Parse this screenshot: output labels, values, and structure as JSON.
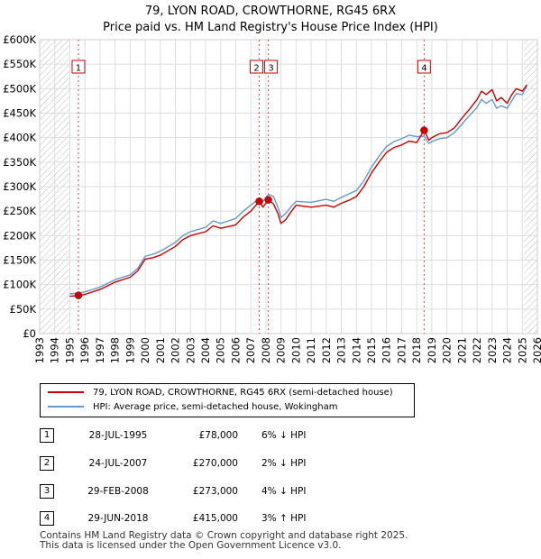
{
  "header": {
    "title_line1": "79, LYON ROAD, CROWTHORNE, RG45 6RX",
    "title_line2": "Price paid vs. HM Land Registry's House Price Index (HPI)"
  },
  "legend": {
    "series1_label": "79, LYON ROAD, CROWTHORNE, RG45 6RX (semi-detached house)",
    "series2_label": "HPI: Average price, semi-detached house, Wokingham"
  },
  "colors": {
    "property_line": "#cc0000",
    "hpi_line": "#6699cc",
    "sale_vline": "#dd4444",
    "hatch": "#bbbbbb",
    "grid": "#dddddd"
  },
  "sales": [
    {
      "num": "1",
      "date": "28-JUL-1995",
      "price": "£78,000",
      "hpi": "6% ↓ HPI"
    },
    {
      "num": "2",
      "date": "24-JUL-2007",
      "price": "£270,000",
      "hpi": "2% ↓ HPI"
    },
    {
      "num": "3",
      "date": "29-FEB-2008",
      "price": "£273,000",
      "hpi": "4% ↓ HPI"
    },
    {
      "num": "4",
      "date": "29-JUN-2018",
      "price": "£415,000",
      "hpi": "3% ↑ HPI"
    }
  ],
  "footer": {
    "line1": "Contains HM Land Registry data © Crown copyright and database right 2025.",
    "line2": "This data is licensed under the Open Government Licence v3.0."
  },
  "chart_data": {
    "type": "line",
    "title": "79, LYON ROAD, CROWTHORNE, RG45 6RX — Price paid vs. HM Land Registry's House Price Index (HPI)",
    "xlabel": "",
    "ylabel": "",
    "xlim": [
      1993,
      2026
    ],
    "ylim": [
      0,
      600000
    ],
    "grid": true,
    "legend_position": "below",
    "x_ticks": [
      "1993",
      "1994",
      "1995",
      "1996",
      "1997",
      "1998",
      "1999",
      "2000",
      "2001",
      "2002",
      "2003",
      "2004",
      "2005",
      "2006",
      "2007",
      "2008",
      "2009",
      "2010",
      "2011",
      "2012",
      "2013",
      "2014",
      "2015",
      "2016",
      "2017",
      "2018",
      "2019",
      "2020",
      "2021",
      "2022",
      "2023",
      "2024",
      "2025",
      "2026"
    ],
    "y_ticks": [
      {
        "value": 0,
        "label": "£0"
      },
      {
        "value": 50000,
        "label": "£50K"
      },
      {
        "value": 100000,
        "label": "£100K"
      },
      {
        "value": 150000,
        "label": "£150K"
      },
      {
        "value": 200000,
        "label": "£200K"
      },
      {
        "value": 250000,
        "label": "£250K"
      },
      {
        "value": 300000,
        "label": "£300K"
      },
      {
        "value": 350000,
        "label": "£350K"
      },
      {
        "value": 400000,
        "label": "£400K"
      },
      {
        "value": 450000,
        "label": "£450K"
      },
      {
        "value": 500000,
        "label": "£500K"
      },
      {
        "value": 550000,
        "label": "£550K"
      },
      {
        "value": 600000,
        "label": "£600K"
      }
    ],
    "hatched_ranges": [
      [
        1993,
        1995.0
      ],
      [
        2025.1,
        2026
      ]
    ],
    "series": [
      {
        "name": "79, LYON ROAD, CROWTHORNE, RG45 6RX (semi-detached house)",
        "color": "#cc0000",
        "x": [
          1995.0,
          1995.57,
          1996.0,
          1997.0,
          1998.0,
          1999.0,
          1999.5,
          2000.0,
          2000.5,
          2001.0,
          2002.0,
          2002.5,
          2003.0,
          2004.0,
          2004.5,
          2005.0,
          2006.0,
          2006.5,
          2007.0,
          2007.56,
          2007.8,
          2008.16,
          2008.5,
          2008.8,
          2009.0,
          2009.3,
          2009.7,
          2010.0,
          2011.0,
          2012.0,
          2012.5,
          2013.0,
          2013.5,
          2014.0,
          2014.5,
          2015.0,
          2015.5,
          2016.0,
          2016.5,
          2017.0,
          2017.5,
          2018.0,
          2018.49,
          2018.8,
          2019.0,
          2019.5,
          2020.0,
          2020.5,
          2021.0,
          2021.5,
          2022.0,
          2022.3,
          2022.6,
          2023.0,
          2023.3,
          2023.6,
          2024.0,
          2024.3,
          2024.6,
          2025.0,
          2025.3
        ],
        "y": [
          76000,
          78000,
          80000,
          90000,
          105000,
          115000,
          128000,
          152000,
          155000,
          160000,
          178000,
          192000,
          200000,
          208000,
          220000,
          215000,
          222000,
          238000,
          250000,
          270000,
          258000,
          273000,
          265000,
          245000,
          225000,
          232000,
          250000,
          262000,
          258000,
          262000,
          258000,
          266000,
          272000,
          280000,
          300000,
          328000,
          350000,
          370000,
          380000,
          385000,
          393000,
          390000,
          415000,
          395000,
          400000,
          408000,
          410000,
          420000,
          440000,
          458000,
          478000,
          495000,
          488000,
          498000,
          475000,
          482000,
          470000,
          488000,
          500000,
          495000,
          508000
        ]
      },
      {
        "name": "HPI: Average price, semi-detached house, Wokingham",
        "color": "#6699cc",
        "x": [
          1995.0,
          1995.57,
          1996.0,
          1997.0,
          1998.0,
          1999.0,
          1999.5,
          2000.0,
          2000.5,
          2001.0,
          2002.0,
          2002.5,
          2003.0,
          2004.0,
          2004.5,
          2005.0,
          2006.0,
          2006.5,
          2007.0,
          2007.56,
          2007.8,
          2008.16,
          2008.5,
          2008.8,
          2009.0,
          2009.3,
          2009.7,
          2010.0,
          2011.0,
          2012.0,
          2012.5,
          2013.0,
          2013.5,
          2014.0,
          2014.5,
          2015.0,
          2015.5,
          2016.0,
          2016.5,
          2017.0,
          2017.5,
          2018.0,
          2018.49,
          2018.8,
          2019.0,
          2019.5,
          2020.0,
          2020.5,
          2021.0,
          2021.5,
          2022.0,
          2022.3,
          2022.6,
          2023.0,
          2023.3,
          2023.6,
          2024.0,
          2024.3,
          2024.6,
          2025.0,
          2025.3
        ],
        "y": [
          81000,
          83000,
          85000,
          95000,
          110000,
          120000,
          133000,
          158000,
          162000,
          168000,
          186000,
          200000,
          208000,
          217000,
          230000,
          225000,
          235000,
          250000,
          262000,
          276000,
          270000,
          284000,
          280000,
          258000,
          237000,
          245000,
          260000,
          270000,
          268000,
          274000,
          270000,
          278000,
          285000,
          292000,
          312000,
          340000,
          362000,
          382000,
          392000,
          398000,
          405000,
          402000,
          403000,
          388000,
          392000,
          398000,
          400000,
          410000,
          428000,
          445000,
          462000,
          478000,
          470000,
          478000,
          460000,
          465000,
          460000,
          475000,
          490000,
          488000,
          505000
        ]
      }
    ],
    "sale_markers": [
      {
        "label": "1",
        "x": 1995.57,
        "y": 78000
      },
      {
        "label": "2",
        "x": 2007.56,
        "y": 270000
      },
      {
        "label": "3",
        "x": 2008.16,
        "y": 273000
      },
      {
        "label": "4",
        "x": 2018.49,
        "y": 415000
      }
    ]
  }
}
